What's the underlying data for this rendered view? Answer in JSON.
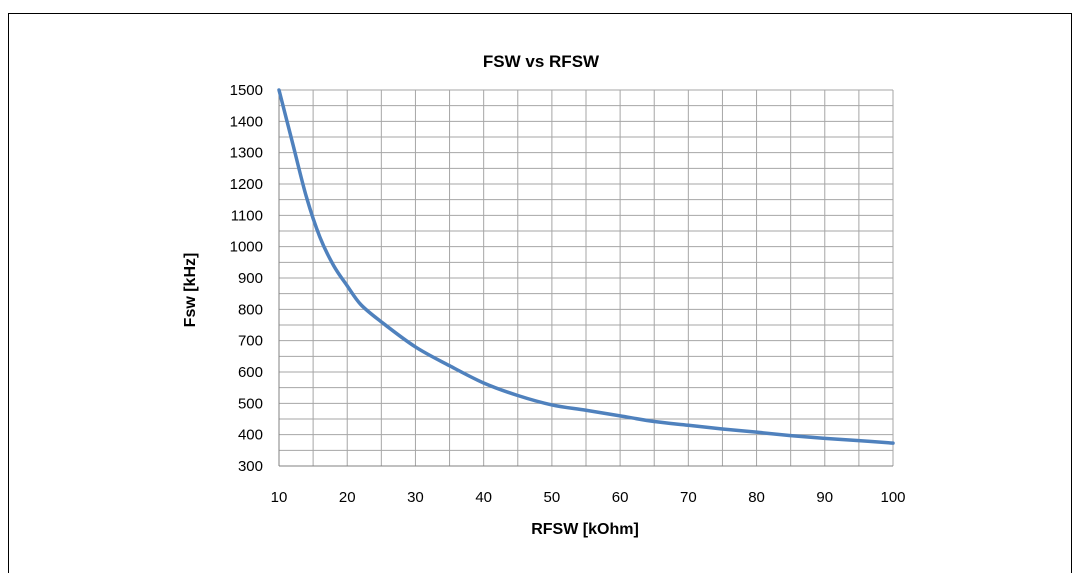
{
  "chart_data": {
    "type": "line",
    "title": "FSW vs RFSW",
    "xlabel": "RFSW [kOhm]",
    "ylabel": "Fsw [kHz]",
    "xlim": [
      10,
      100
    ],
    "ylim": [
      300,
      1500
    ],
    "x_ticks": [
      10,
      20,
      30,
      40,
      50,
      60,
      70,
      80,
      90,
      100
    ],
    "y_ticks": [
      300,
      400,
      500,
      600,
      700,
      800,
      900,
      1000,
      1100,
      1200,
      1300,
      1400,
      1500
    ],
    "x_minor_step": 5,
    "y_minor_step": 50,
    "grid": true,
    "legend": "none",
    "series_color": "#4f81bd",
    "series": [
      {
        "x": [
          10,
          12,
          14,
          16,
          18,
          20,
          22,
          25,
          30,
          35,
          40,
          45,
          50,
          55,
          60,
          65,
          70,
          75,
          80,
          85,
          90,
          95,
          100
        ],
        "y": [
          1500,
          1330,
          1160,
          1030,
          940,
          875,
          815,
          760,
          680,
          620,
          565,
          525,
          495,
          478,
          460,
          442,
          430,
          418,
          408,
          397,
          388,
          381,
          373
        ]
      }
    ]
  }
}
